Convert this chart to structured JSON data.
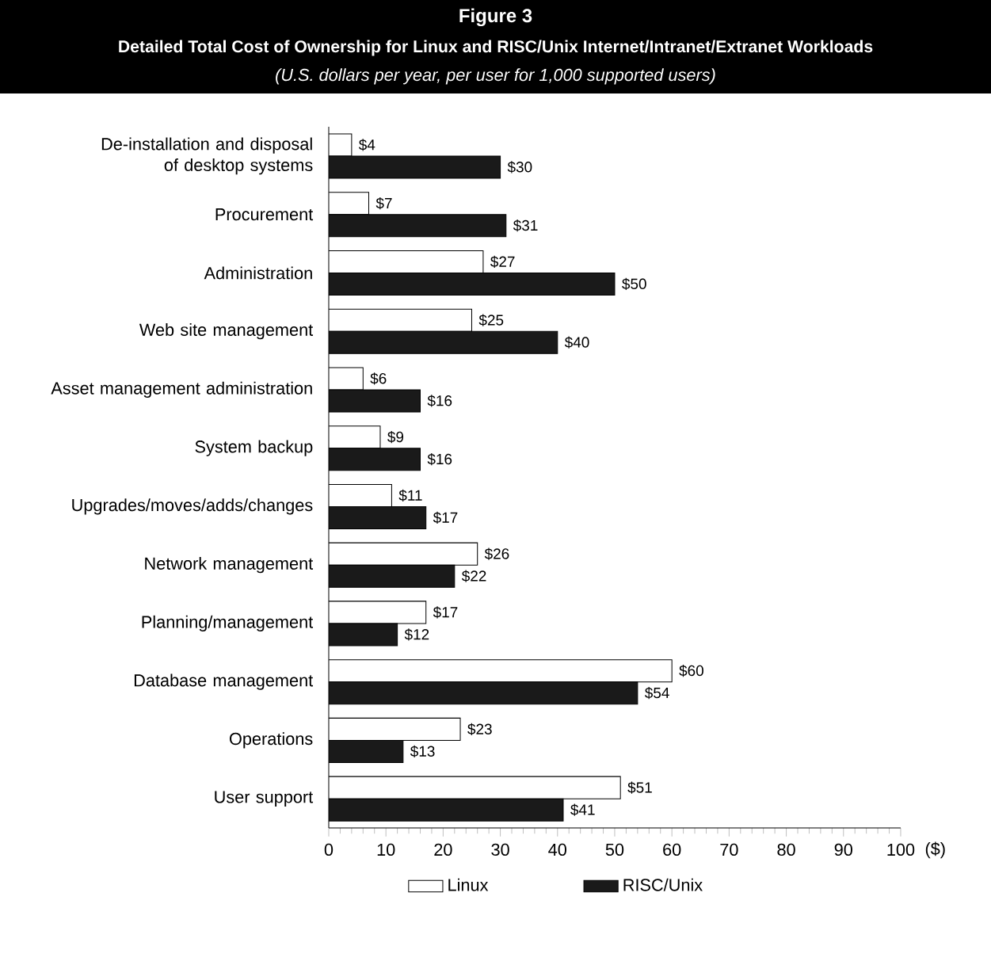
{
  "chart_data": {
    "type": "bar",
    "orientation": "horizontal",
    "title": "Figure 3",
    "subtitle": "Detailed Total Cost of Ownership for Linux and RISC/Unix Internet/Intranet/Extranet Workloads",
    "annotations": [
      "(U.S. dollars per year, per user for 1,000 supported users)"
    ],
    "xlabel": "($)",
    "categories": [
      "De-installation and disposal of desktop systems",
      "Procurement",
      "Administration",
      "Web site management",
      "Asset management administration",
      "System backup",
      "Upgrades/moves/adds/changes",
      "Network management",
      "Planning/management",
      "Database management",
      "Operations",
      "User support"
    ],
    "series": [
      {
        "name": "Linux",
        "color": "#ffffff",
        "values": [
          4,
          7,
          27,
          25,
          6,
          9,
          11,
          26,
          17,
          60,
          23,
          51
        ],
        "value_labels": [
          "$4",
          "$7",
          "$27",
          "$25",
          "$6",
          "$9",
          "$11",
          "$26",
          "$17",
          "$60",
          "$23",
          "$51"
        ]
      },
      {
        "name": "RISC/Unix",
        "color": "#1a1a1a",
        "values": [
          30,
          31,
          50,
          40,
          16,
          16,
          17,
          22,
          12,
          54,
          13,
          41
        ],
        "value_labels": [
          "$30",
          "$31",
          "$50",
          "$40",
          "$16",
          "$16",
          "$17",
          "$22",
          "$12",
          "$54",
          "$13",
          "$41"
        ]
      }
    ],
    "xlim": [
      0,
      100
    ],
    "xticks": [
      0,
      10,
      20,
      30,
      40,
      50,
      60,
      70,
      80,
      90,
      100
    ],
    "grid": false,
    "legend": "bottom"
  }
}
